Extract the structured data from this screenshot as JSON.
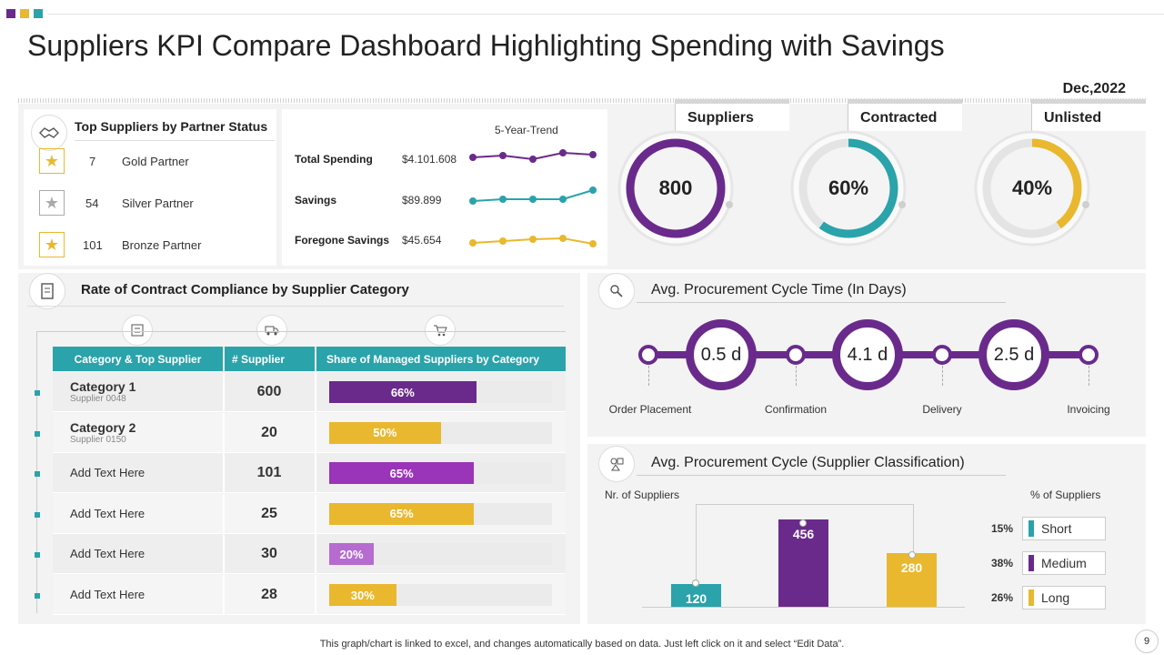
{
  "title": "Suppliers KPI Compare Dashboard Highlighting Spending with Savings",
  "colors": {
    "purple": "#6a2a8c",
    "teal": "#2aa3ab",
    "yellow": "#e9b82f",
    "violet": "#9a34b8",
    "lightviolet": "#b66bd0"
  },
  "date": "Dec,2022",
  "partners": {
    "title": "Top Suppliers by Partner Status",
    "icon": "handshake-icon",
    "items": [
      {
        "count": "7",
        "label": "Gold Partner"
      },
      {
        "count": "54",
        "label": "Silver Partner"
      },
      {
        "count": "101",
        "label": "Bronze Partner"
      }
    ]
  },
  "trend": {
    "header": "5-Year-Trend",
    "rows": [
      {
        "label": "Total Spending",
        "value": "$4.101.608",
        "points": [
          52,
          54,
          50,
          57,
          55
        ]
      },
      {
        "label": "Savings",
        "value": "$89.899",
        "points": [
          48,
          50,
          50,
          50,
          60
        ]
      },
      {
        "label": "Foregone Savings",
        "value": "$45.654",
        "points": [
          48,
          50,
          52,
          53,
          47
        ]
      }
    ]
  },
  "kpis": [
    {
      "label": "Suppliers",
      "value": "800",
      "percent": 100
    },
    {
      "label": "Contracted",
      "value": "60%",
      "percent": 60
    },
    {
      "label": "Unlisted",
      "value": "40%",
      "percent": 40
    }
  ],
  "compliance": {
    "title": "Rate of Contract  Compliance by Supplier Category",
    "headers": [
      "Category & Top  Supplier",
      "# Supplier",
      "Share of Managed Suppliers by Category"
    ],
    "rows": [
      {
        "name": "Category 1",
        "sub": "Supplier 0048",
        "count": "600",
        "share": "66%",
        "share_value": 66
      },
      {
        "name": "Category 2",
        "sub": "Supplier 0150",
        "count": "20",
        "share": "50%",
        "share_value": 50
      },
      {
        "name": "Add Text Here",
        "sub": "",
        "count": "101",
        "share": "65%",
        "share_value": 65
      },
      {
        "name": "Add Text Here",
        "sub": "",
        "count": "25",
        "share": "65%",
        "share_value": 65
      },
      {
        "name": "Add Text Here",
        "sub": "",
        "count": "30",
        "share": "20%",
        "share_value": 20
      },
      {
        "name": "Add Text Here",
        "sub": "",
        "count": "28",
        "share": "30%",
        "share_value": 30
      }
    ]
  },
  "cycle_time": {
    "title": "Avg. Procurement Cycle Time (In Days)",
    "values": [
      "0.5 d",
      "4.1 d",
      "2.5 d"
    ],
    "stages": [
      "Order Placement",
      "Confirmation",
      "Delivery",
      "Invoicing"
    ]
  },
  "classification": {
    "title": "Avg. Procurement Cycle (Supplier Classification)",
    "left_label": "Nr. of Suppliers",
    "right_label": "% of Suppliers",
    "bars": [
      {
        "name": "Short",
        "value": 120,
        "label": "120",
        "pct": "15%"
      },
      {
        "name": "Medium",
        "value": 456,
        "label": "456",
        "pct": "38%"
      },
      {
        "name": "Long",
        "value": 280,
        "label": "280",
        "pct": "26%"
      }
    ]
  },
  "footer": "This graph/chart is linked to excel,  and changes automatically based on data. Just left click on it and select “Edit Data”.",
  "page": "9"
}
